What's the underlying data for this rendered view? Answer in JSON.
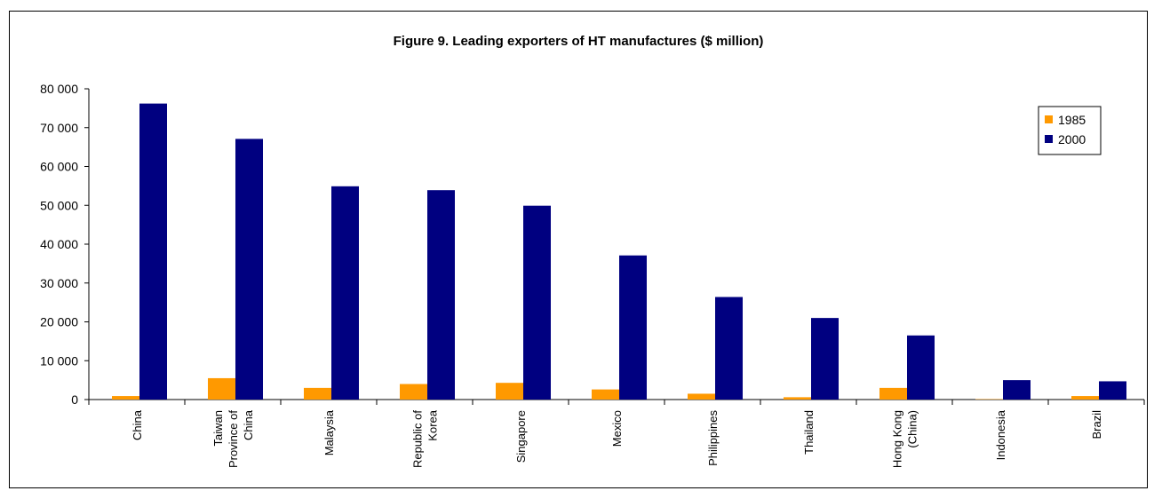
{
  "chart_data": {
    "type": "bar",
    "title": "Figure 9.  Leading exporters of HT manufactures ($ million)",
    "xlabel": "",
    "ylabel": "",
    "categories": [
      [
        "China"
      ],
      [
        "Taiwan",
        "Province of",
        "China"
      ],
      [
        "Malaysia"
      ],
      [
        "Republic of",
        "Korea"
      ],
      [
        "Singapore"
      ],
      [
        "Mexico"
      ],
      [
        "Philippines"
      ],
      [
        "Thailand"
      ],
      [
        "Hong Kong",
        "(China)"
      ],
      [
        "Indonesia"
      ],
      [
        "Brazil"
      ]
    ],
    "series": [
      {
        "name": "1985",
        "color": "#FF9900",
        "values": [
          900,
          5500,
          3000,
          4000,
          4300,
          2600,
          1500,
          600,
          3000,
          100,
          900
        ]
      },
      {
        "name": "2000",
        "color": "#000080",
        "values": [
          76200,
          67100,
          54900,
          53900,
          49900,
          37100,
          26400,
          21000,
          16500,
          5000,
          4700
        ]
      }
    ],
    "ylim": [
      0,
      80000
    ],
    "yticks": [
      "0",
      "10 000",
      "20 000",
      "30 000",
      "40 000",
      "50 000",
      "60 000",
      "70 000",
      "80 000"
    ],
    "grid": false,
    "legend_position": "top-right"
  }
}
